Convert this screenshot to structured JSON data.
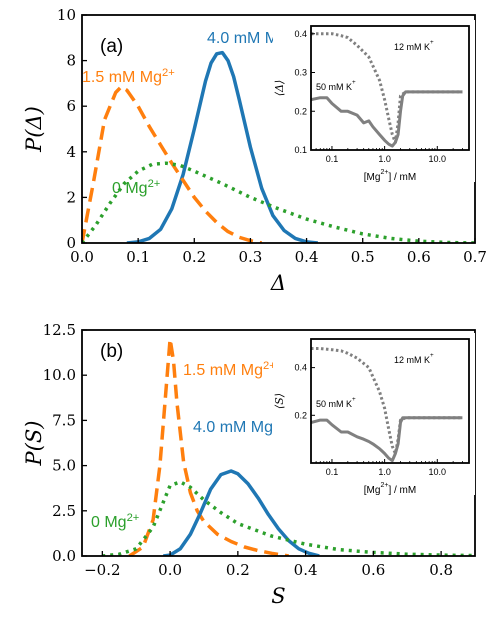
{
  "chart_data": [
    {
      "type": "line",
      "panel": "(a)",
      "xlabel": "Δ",
      "ylabel": "P(Δ)",
      "xlim": [
        0,
        0.7
      ],
      "ylim": [
        0,
        10
      ],
      "xticks": [
        "0.0",
        "0.1",
        "0.2",
        "0.3",
        "0.4",
        "0.5",
        "0.6",
        "0.7"
      ],
      "yticks": [
        "0",
        "2",
        "4",
        "6",
        "8",
        "10"
      ],
      "series": [
        {
          "name": "4.0 mM Mg",
          "name_sup": "2+",
          "color": "#1f77b4",
          "dash": "solid",
          "x": [
            0.08,
            0.1,
            0.12,
            0.14,
            0.16,
            0.18,
            0.2,
            0.22,
            0.23,
            0.24,
            0.25,
            0.26,
            0.27,
            0.28,
            0.3,
            0.32,
            0.34,
            0.36,
            0.38,
            0.4,
            0.42
          ],
          "y": [
            0,
            0.05,
            0.2,
            0.6,
            1.5,
            3.0,
            5.0,
            7.1,
            7.9,
            8.3,
            8.35,
            8.0,
            7.3,
            6.3,
            4.2,
            2.4,
            1.2,
            0.55,
            0.2,
            0.05,
            0
          ]
        },
        {
          "name": "1.5 mM Mg",
          "name_sup": "2+",
          "color": "#ff7f0e",
          "dash": "dashed",
          "x": [
            0,
            0.02,
            0.04,
            0.06,
            0.07,
            0.08,
            0.1,
            0.12,
            0.14,
            0.16,
            0.18,
            0.2,
            0.22,
            0.24,
            0.26,
            0.28,
            0.3,
            0.32
          ],
          "y": [
            0,
            2.6,
            5.4,
            6.6,
            6.85,
            6.7,
            6.0,
            5.1,
            4.3,
            3.5,
            2.75,
            2.0,
            1.4,
            0.9,
            0.5,
            0.25,
            0.1,
            0
          ]
        },
        {
          "name": "0 Mg",
          "name_sup": "2+",
          "color": "#2ca02c",
          "dash": "dotted",
          "x": [
            0,
            0.025,
            0.05,
            0.075,
            0.1,
            0.125,
            0.15,
            0.175,
            0.2,
            0.25,
            0.3,
            0.35,
            0.4,
            0.45,
            0.5,
            0.55,
            0.6,
            0.65,
            0.7
          ],
          "y": [
            0,
            0.8,
            1.75,
            2.6,
            3.15,
            3.45,
            3.5,
            3.4,
            3.15,
            2.6,
            2.0,
            1.5,
            1.05,
            0.7,
            0.4,
            0.2,
            0.08,
            0.02,
            0
          ]
        }
      ],
      "inset": {
        "xlabel": "[Mg",
        "xlabel_sup": "2+",
        "xlabel_tail": "] / mM",
        "ylabel": "⟨Δ⟩",
        "xscale": "log",
        "xlim": [
          0.04,
          40
        ],
        "ylim": [
          0.1,
          0.42
        ],
        "xticks": [
          0.1,
          1.0,
          10.0
        ],
        "xticklabels": [
          "0.1",
          "1.0",
          "10.0"
        ],
        "yticks": [
          0.1,
          0.2,
          0.3,
          0.4
        ],
        "yticklabels": [
          "0.1",
          "0.2",
          "0.3",
          "0.4"
        ],
        "series": [
          {
            "name": "12 mM K",
            "name_sup": "+",
            "dash": "dotted",
            "x": [
              0.04,
              0.06,
              0.1,
              0.15,
              0.2,
              0.3,
              0.5,
              0.8,
              1.0,
              1.2,
              1.4,
              1.6,
              1.8,
              2.0,
              2.5,
              3.0,
              5.0,
              10.0,
              30.0
            ],
            "y": [
              0.4,
              0.4,
              0.4,
              0.395,
              0.39,
              0.37,
              0.34,
              0.28,
              0.23,
              0.18,
              0.14,
              0.12,
              0.17,
              0.24,
              0.25,
              0.25,
              0.25,
              0.25,
              0.25
            ]
          },
          {
            "name": "50 mM K",
            "name_sup": "+",
            "dash": "solid",
            "x": [
              0.04,
              0.06,
              0.08,
              0.1,
              0.15,
              0.2,
              0.3,
              0.4,
              0.5,
              0.6,
              0.8,
              1.0,
              1.2,
              1.4,
              1.6,
              1.8,
              2.0,
              2.2,
              2.5,
              3.0,
              5.0,
              10.0,
              30.0
            ],
            "y": [
              0.23,
              0.235,
              0.235,
              0.22,
              0.2,
              0.2,
              0.19,
              0.17,
              0.175,
              0.16,
              0.14,
              0.125,
              0.115,
              0.11,
              0.12,
              0.14,
              0.2,
              0.24,
              0.25,
              0.25,
              0.25,
              0.25,
              0.25
            ]
          }
        ]
      }
    },
    {
      "type": "line",
      "panel": "(b)",
      "xlabel": "S",
      "ylabel": "P(S)",
      "xlim": [
        -0.26,
        0.9
      ],
      "ylim": [
        0,
        12.5
      ],
      "xticks": [
        "−0.2",
        "0.0",
        "0.2",
        "0.4",
        "0.6",
        "0.8"
      ],
      "xtick_values": [
        -0.2,
        0.0,
        0.2,
        0.4,
        0.6,
        0.8
      ],
      "yticks": [
        "0.0",
        "2.5",
        "5.0",
        "7.5",
        "10.0",
        "12.5"
      ],
      "series": [
        {
          "name": "1.5 mM Mg",
          "name_sup": "2+",
          "color": "#ff7f0e",
          "dash": "dashed",
          "x": [
            -0.12,
            -0.08,
            -0.05,
            -0.03,
            -0.015,
            0.0,
            0.01,
            0.02,
            0.04,
            0.06,
            0.08,
            0.1,
            0.14,
            0.18,
            0.22,
            0.26,
            0.3,
            0.35
          ],
          "y": [
            0,
            0.5,
            2.0,
            5.0,
            8.5,
            12.0,
            10.8,
            8.5,
            5.2,
            3.5,
            2.5,
            1.9,
            1.2,
            0.8,
            0.5,
            0.3,
            0.15,
            0
          ]
        },
        {
          "name": "4.0 mM Mg",
          "name_sup": "2+",
          "color": "#1f77b4",
          "dash": "solid",
          "x": [
            -0.02,
            0.0,
            0.03,
            0.06,
            0.09,
            0.12,
            0.15,
            0.18,
            0.2,
            0.23,
            0.26,
            0.29,
            0.32,
            0.35,
            0.38,
            0.41,
            0.44
          ],
          "y": [
            0,
            0.05,
            0.4,
            1.2,
            2.4,
            3.7,
            4.5,
            4.7,
            4.55,
            4.0,
            3.2,
            2.3,
            1.5,
            0.85,
            0.4,
            0.15,
            0
          ]
        },
        {
          "name": "0 Mg",
          "name_sup": "2+",
          "color": "#2ca02c",
          "dash": "dotted",
          "x": [
            -0.2,
            -0.15,
            -0.1,
            -0.05,
            0.0,
            0.03,
            0.06,
            0.1,
            0.15,
            0.2,
            0.3,
            0.4,
            0.5,
            0.6,
            0.7,
            0.8,
            0.9
          ],
          "y": [
            0,
            0.1,
            0.4,
            1.6,
            3.9,
            4.1,
            3.8,
            3.1,
            2.4,
            1.8,
            1.1,
            0.65,
            0.35,
            0.2,
            0.1,
            0.05,
            0.02
          ]
        }
      ],
      "inset": {
        "xlabel": "[Mg",
        "xlabel_sup": "2+",
        "xlabel_tail": "] / mM",
        "ylabel": "⟨S⟩",
        "xscale": "log",
        "xlim": [
          0.04,
          40
        ],
        "ylim": [
          0.0,
          0.52
        ],
        "xticks": [
          0.1,
          1.0,
          10.0
        ],
        "xticklabels": [
          "0.1",
          "1.0",
          "10.0"
        ],
        "yticks": [
          0.2,
          0.4
        ],
        "yticklabels": [
          "0.2",
          "0.4"
        ],
        "series": [
          {
            "name": "12 mM K",
            "name_sup": "+",
            "dash": "dotted",
            "x": [
              0.04,
              0.06,
              0.1,
              0.15,
              0.2,
              0.3,
              0.5,
              0.8,
              1.0,
              1.2,
              1.4,
              1.6,
              1.8,
              2.0,
              2.5,
              3.0,
              5.0,
              10.0,
              30.0
            ],
            "y": [
              0.48,
              0.48,
              0.475,
              0.47,
              0.46,
              0.44,
              0.4,
              0.3,
              0.23,
              0.14,
              0.07,
              0.04,
              0.1,
              0.18,
              0.19,
              0.19,
              0.19,
              0.19,
              0.19
            ]
          },
          {
            "name": "50 mM K",
            "name_sup": "+",
            "dash": "solid",
            "x": [
              0.04,
              0.06,
              0.08,
              0.1,
              0.15,
              0.2,
              0.3,
              0.4,
              0.5,
              0.6,
              0.8,
              1.0,
              1.2,
              1.4,
              1.6,
              1.8,
              2.0,
              2.2,
              2.5,
              3.0,
              5.0,
              10.0,
              30.0
            ],
            "y": [
              0.17,
              0.18,
              0.18,
              0.16,
              0.13,
              0.13,
              0.11,
              0.1,
              0.09,
              0.08,
              0.06,
              0.04,
              0.02,
              0.01,
              0.04,
              0.08,
              0.17,
              0.19,
              0.19,
              0.19,
              0.19,
              0.19,
              0.19
            ]
          }
        ]
      }
    }
  ]
}
